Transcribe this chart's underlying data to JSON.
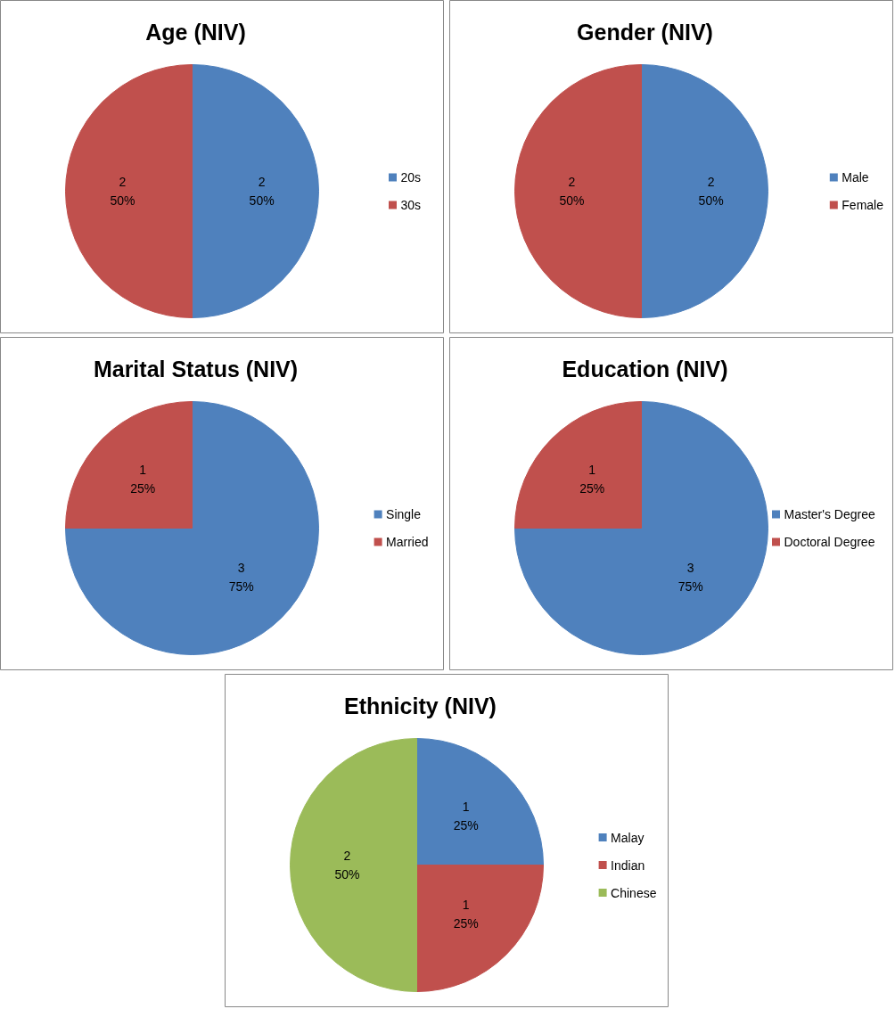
{
  "chart_data": [
    {
      "type": "pie",
      "title": "Age (NIV)",
      "categories": [
        "20s",
        "30s"
      ],
      "values": [
        2,
        2
      ],
      "colors": [
        "#4f81bd",
        "#c0504d"
      ],
      "value_labels": [
        "2\n50%",
        "2\n50%"
      ],
      "legend": "right"
    },
    {
      "type": "pie",
      "title": "Gender (NIV)",
      "categories": [
        "Male",
        "Female"
      ],
      "values": [
        2,
        2
      ],
      "colors": [
        "#4f81bd",
        "#c0504d"
      ],
      "value_labels": [
        "2\n50%",
        "2\n50%"
      ],
      "legend": "right"
    },
    {
      "type": "pie",
      "title": "Marital Status (NIV)",
      "categories": [
        "Single",
        "Married"
      ],
      "values": [
        3,
        1
      ],
      "colors": [
        "#4f81bd",
        "#c0504d"
      ],
      "value_labels": [
        "3\n75%",
        "1\n25%"
      ],
      "legend": "right"
    },
    {
      "type": "pie",
      "title": "Education (NIV)",
      "categories": [
        "Master's Degree",
        "Doctoral Degree"
      ],
      "values": [
        3,
        1
      ],
      "colors": [
        "#4f81bd",
        "#c0504d"
      ],
      "value_labels": [
        "3\n75%",
        "1\n25%"
      ],
      "legend": "right"
    },
    {
      "type": "pie",
      "title": "Ethnicity (NIV)",
      "categories": [
        "Malay",
        "Indian",
        "Chinese"
      ],
      "values": [
        1,
        1,
        2
      ],
      "colors": [
        "#4f81bd",
        "#c0504d",
        "#9bbb59"
      ],
      "value_labels": [
        "1\n25%",
        "1\n25%",
        "2\n50%"
      ],
      "legend": "right"
    }
  ]
}
